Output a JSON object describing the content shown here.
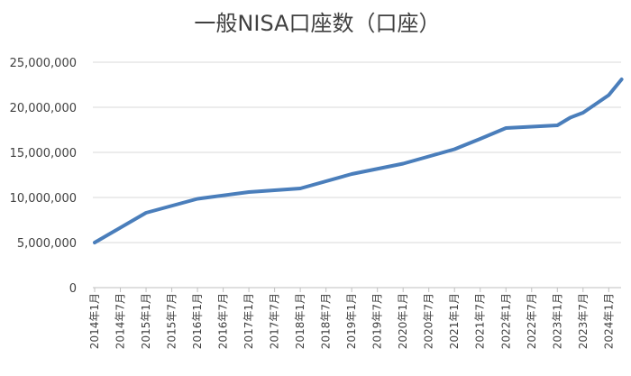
{
  "chart_data": {
    "type": "line",
    "title": "一般NISA口座数（口座）",
    "xlabel": "",
    "ylabel": "",
    "grid": true,
    "legend": "none",
    "ylim": [
      0,
      25000000
    ],
    "y_ticks": [
      0,
      5000000,
      10000000,
      15000000,
      20000000,
      25000000
    ],
    "y_tick_labels": [
      "0",
      "5,000,000",
      "10,000,000",
      "15,000,000",
      "20,000,000",
      "25,000,000"
    ],
    "categories": [
      "2014年1月",
      "2014年7月",
      "2015年1月",
      "2015年7月",
      "2016年1月",
      "2016年7月",
      "2017年1月",
      "2017年7月",
      "2018年1月",
      "2018年7月",
      "2019年1月",
      "2019年7月",
      "2020年1月",
      "2020年7月",
      "2021年1月",
      "2021年7月",
      "2022年1月",
      "2022年7月",
      "2023年1月",
      "2023年7月",
      "2024年1月"
    ],
    "series": [
      {
        "color": "#4a7ebb",
        "points": [
          {
            "x": 0,
            "y": 5000000
          },
          {
            "x": 2,
            "y": 8300000
          },
          {
            "x": 4,
            "y": 9850000
          },
          {
            "x": 6,
            "y": 10600000
          },
          {
            "x": 8,
            "y": 11000000
          },
          {
            "x": 10,
            "y": 12600000
          },
          {
            "x": 12,
            "y": 13750000
          },
          {
            "x": 14,
            "y": 15350000
          },
          {
            "x": 15,
            "y": 16500000
          },
          {
            "x": 16,
            "y": 17700000
          },
          {
            "x": 17,
            "y": 17850000
          },
          {
            "x": 18,
            "y": 18000000
          },
          {
            "x": 18.5,
            "y": 18850000
          },
          {
            "x": 19,
            "y": 19400000
          },
          {
            "x": 20,
            "y": 21350000
          },
          {
            "x": 20.5,
            "y": 23100000
          }
        ]
      }
    ]
  }
}
